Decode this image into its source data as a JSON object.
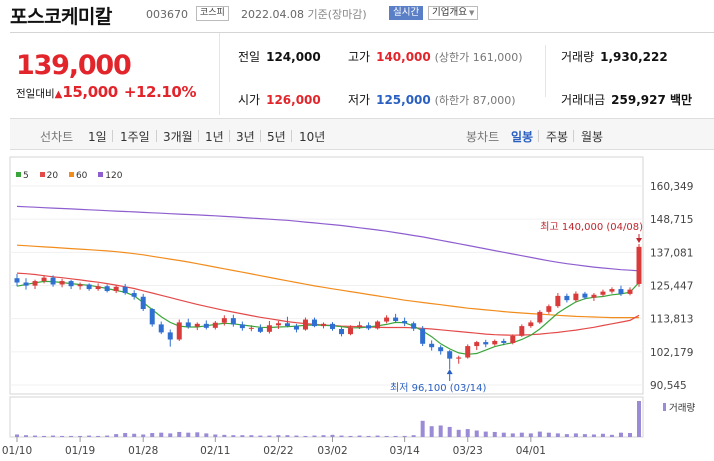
{
  "header": {
    "name": "포스코케미칼",
    "code": "003670",
    "market": "코스피",
    "date": "2022.04.08",
    "date_suffix": "기준(장마감)",
    "live_label": "실시간",
    "info_label": "기업개요"
  },
  "price": {
    "current": "139,000",
    "change_label": "전일대비",
    "change_amount": "15,000",
    "change_pct": "+12.10%",
    "up_color": "#e2242b"
  },
  "stats": {
    "prev_close": {
      "label": "전일",
      "value": "124,000"
    },
    "high": {
      "label": "고가",
      "value": "140,000",
      "sub": "(상한가 161,000)"
    },
    "volume": {
      "label": "거래량",
      "value": "1,930,222"
    },
    "open": {
      "label": "시가",
      "value": "126,000"
    },
    "low": {
      "label": "저가",
      "value": "125,000",
      "sub": "(하한가 87,000)"
    },
    "amount": {
      "label": "거래대금",
      "value": "259,927 백만"
    }
  },
  "tabs": {
    "period_label": "선차트",
    "periods": [
      "1일",
      "1주일",
      "3개월",
      "1년",
      "3년",
      "5년",
      "10년"
    ],
    "candle_label": "봉차트",
    "candles": [
      "일봉",
      "주봉",
      "월봉"
    ],
    "active_candle": "일봉"
  },
  "legend": [
    {
      "label": "5",
      "color": "#3aa63a"
    },
    {
      "label": "20",
      "color": "#e44a4a"
    },
    {
      "label": "60",
      "color": "#f28c1c"
    },
    {
      "label": "120",
      "color": "#8e5ecf"
    }
  ],
  "chart_data": {
    "type": "candlestick",
    "y_ticks": [
      "160,349",
      "148,715",
      "137,081",
      "125,447",
      "113,813",
      "102,179",
      "90,545"
    ],
    "x_labels": [
      "01/10",
      "01/19",
      "01/28",
      "02/11",
      "02/22",
      "03/02",
      "03/14",
      "03/23",
      "04/01"
    ],
    "high_annotation": "최고 140,000 (04/08)",
    "low_annotation": "최저 96,100 (03/14)",
    "volume_label": "거래량",
    "up_color": "#d93b3b",
    "down_color": "#2f6fd1",
    "volume_color": "#9b8ad6",
    "candles": [
      {
        "o": 128000,
        "h": 129500,
        "l": 125200,
        "c": 126500
      },
      {
        "o": 126500,
        "h": 128000,
        "l": 124000,
        "c": 125400
      },
      {
        "o": 125400,
        "h": 127500,
        "l": 124200,
        "c": 127000
      },
      {
        "o": 127000,
        "h": 129000,
        "l": 126200,
        "c": 128200
      },
      {
        "o": 128200,
        "h": 129000,
        "l": 125000,
        "c": 125800
      },
      {
        "o": 125800,
        "h": 127800,
        "l": 124800,
        "c": 127000
      },
      {
        "o": 127000,
        "h": 127400,
        "l": 124200,
        "c": 125200
      },
      {
        "o": 125200,
        "h": 126500,
        "l": 124000,
        "c": 125800
      },
      {
        "o": 125800,
        "h": 126200,
        "l": 123600,
        "c": 124200
      },
      {
        "o": 124200,
        "h": 126200,
        "l": 123600,
        "c": 125200
      },
      {
        "o": 125200,
        "h": 125800,
        "l": 123000,
        "c": 123500
      },
      {
        "o": 123500,
        "h": 125500,
        "l": 122800,
        "c": 125000
      },
      {
        "o": 125000,
        "h": 126000,
        "l": 122200,
        "c": 122800
      },
      {
        "o": 122800,
        "h": 123800,
        "l": 120500,
        "c": 121500
      },
      {
        "o": 121500,
        "h": 122500,
        "l": 116500,
        "c": 117200
      },
      {
        "o": 117200,
        "h": 117500,
        "l": 111000,
        "c": 111800
      },
      {
        "o": 111800,
        "h": 112800,
        "l": 108400,
        "c": 109000
      },
      {
        "o": 109000,
        "h": 110000,
        "l": 104000,
        "c": 106500
      },
      {
        "o": 106500,
        "h": 113500,
        "l": 106000,
        "c": 112500
      },
      {
        "o": 112500,
        "h": 113800,
        "l": 110300,
        "c": 111000
      },
      {
        "o": 111000,
        "h": 112500,
        "l": 109800,
        "c": 112000
      },
      {
        "o": 112000,
        "h": 113200,
        "l": 110000,
        "c": 110600
      },
      {
        "o": 110600,
        "h": 113000,
        "l": 110000,
        "c": 112400
      },
      {
        "o": 112400,
        "h": 115000,
        "l": 111400,
        "c": 114000
      },
      {
        "o": 114000,
        "h": 115200,
        "l": 111000,
        "c": 111800
      },
      {
        "o": 111800,
        "h": 112800,
        "l": 109600,
        "c": 110500
      },
      {
        "o": 110500,
        "h": 111500,
        "l": 109400,
        "c": 110600
      },
      {
        "o": 110600,
        "h": 111800,
        "l": 108800,
        "c": 109200
      },
      {
        "o": 109200,
        "h": 113000,
        "l": 108600,
        "c": 111500
      },
      {
        "o": 111500,
        "h": 113000,
        "l": 110200,
        "c": 112200
      },
      {
        "o": 112200,
        "h": 114500,
        "l": 110800,
        "c": 111200
      },
      {
        "o": 111200,
        "h": 112000,
        "l": 109000,
        "c": 110000
      },
      {
        "o": 110000,
        "h": 114200,
        "l": 109600,
        "c": 113500
      },
      {
        "o": 113500,
        "h": 114200,
        "l": 110800,
        "c": 111200
      },
      {
        "o": 111200,
        "h": 112500,
        "l": 110400,
        "c": 112000
      },
      {
        "o": 112000,
        "h": 112600,
        "l": 109600,
        "c": 110200
      },
      {
        "o": 110200,
        "h": 110800,
        "l": 107600,
        "c": 108400
      },
      {
        "o": 108400,
        "h": 111500,
        "l": 108000,
        "c": 110800
      },
      {
        "o": 110800,
        "h": 112800,
        "l": 110200,
        "c": 111500
      },
      {
        "o": 111500,
        "h": 112500,
        "l": 109800,
        "c": 110400
      },
      {
        "o": 110400,
        "h": 113200,
        "l": 110000,
        "c": 112800
      },
      {
        "o": 112800,
        "h": 115000,
        "l": 112200,
        "c": 114200
      },
      {
        "o": 114200,
        "h": 115500,
        "l": 112400,
        "c": 113000
      },
      {
        "o": 113000,
        "h": 114200,
        "l": 111200,
        "c": 112200
      },
      {
        "o": 112200,
        "h": 112800,
        "l": 109500,
        "c": 110300
      },
      {
        "o": 110300,
        "h": 111200,
        "l": 104200,
        "c": 105000
      },
      {
        "o": 105000,
        "h": 106200,
        "l": 102600,
        "c": 103800
      },
      {
        "o": 103800,
        "h": 104500,
        "l": 101200,
        "c": 102400
      },
      {
        "o": 102400,
        "h": 102800,
        "l": 96100,
        "c": 99800
      },
      {
        "o": 99800,
        "h": 100800,
        "l": 98000,
        "c": 100200
      },
      {
        "o": 100200,
        "h": 104800,
        "l": 99800,
        "c": 104200
      },
      {
        "o": 104200,
        "h": 106000,
        "l": 102800,
        "c": 105600
      },
      {
        "o": 105600,
        "h": 106400,
        "l": 103800,
        "c": 104800
      },
      {
        "o": 104800,
        "h": 106500,
        "l": 104300,
        "c": 106000
      },
      {
        "o": 106000,
        "h": 106800,
        "l": 104500,
        "c": 105300
      },
      {
        "o": 105300,
        "h": 108300,
        "l": 104800,
        "c": 107800
      },
      {
        "o": 107800,
        "h": 111800,
        "l": 107400,
        "c": 111200
      },
      {
        "o": 111200,
        "h": 113200,
        "l": 110600,
        "c": 112500
      },
      {
        "o": 112500,
        "h": 116800,
        "l": 112000,
        "c": 116200
      },
      {
        "o": 116200,
        "h": 118800,
        "l": 115500,
        "c": 118200
      },
      {
        "o": 118200,
        "h": 122800,
        "l": 117600,
        "c": 121800
      },
      {
        "o": 121800,
        "h": 122600,
        "l": 119500,
        "c": 120300
      },
      {
        "o": 120300,
        "h": 123400,
        "l": 119600,
        "c": 122600
      },
      {
        "o": 122600,
        "h": 123200,
        "l": 120600,
        "c": 121200
      },
      {
        "o": 121200,
        "h": 122800,
        "l": 120000,
        "c": 122200
      },
      {
        "o": 122200,
        "h": 124000,
        "l": 121600,
        "c": 123300
      },
      {
        "o": 123300,
        "h": 124800,
        "l": 122600,
        "c": 124200
      },
      {
        "o": 124200,
        "h": 125400,
        "l": 121800,
        "c": 122500
      },
      {
        "o": 122500,
        "h": 124800,
        "l": 122000,
        "c": 124000
      },
      {
        "o": 126000,
        "h": 140000,
        "l": 125000,
        "c": 139000
      }
    ],
    "ma5": [
      125200,
      125800,
      126400,
      126900,
      126800,
      126500,
      126100,
      125800,
      125500,
      125000,
      124400,
      123700,
      123100,
      121800,
      119500,
      117000,
      114500,
      112500,
      111200,
      110900,
      110900,
      111300,
      111800,
      112200,
      112000,
      111600,
      111200,
      110800,
      110700,
      110900,
      111000,
      111200,
      111500,
      111600,
      111500,
      111300,
      111000,
      110600,
      110600,
      110900,
      111300,
      111800,
      112500,
      112400,
      111200,
      109500,
      107500,
      105000,
      103200,
      101800,
      101300,
      101600,
      102800,
      104000,
      104800,
      105400,
      106500,
      108000,
      110200,
      113000,
      115800,
      117800,
      119700,
      120800,
      121300,
      121600,
      122200,
      122500,
      123100,
      126500
    ],
    "ma20": [
      129800,
      129600,
      129300,
      128900,
      128500,
      128200,
      127800,
      127400,
      127000,
      126600,
      126100,
      125600,
      125000,
      124400,
      123600,
      122800,
      122000,
      121200,
      120400,
      119600,
      118800,
      118100,
      117400,
      116700,
      116100,
      115500,
      114900,
      114300,
      113800,
      113300,
      112800,
      112400,
      112100,
      111800,
      111600,
      111400,
      111200,
      111100,
      111000,
      110900,
      110800,
      110700,
      110700,
      110700,
      110600,
      110400,
      110200,
      109900,
      109600,
      109300,
      109000,
      108700,
      108400,
      108200,
      108100,
      108000,
      108100,
      108200,
      108400,
      108700,
      109000,
      109400,
      109800,
      110300,
      110800,
      111400,
      112000,
      112600,
      113200,
      115000
    ],
    "ma60": [
      139600,
      139400,
      139200,
      139000,
      138800,
      138600,
      138400,
      138200,
      138000,
      137800,
      137600,
      137300,
      137000,
      136600,
      136200,
      135700,
      135200,
      134700,
      134200,
      133700,
      133100,
      132500,
      131900,
      131300,
      130700,
      130100,
      129500,
      128900,
      128300,
      127700,
      127100,
      126500,
      125900,
      125300,
      124800,
      124300,
      123800,
      123300,
      122800,
      122300,
      121800,
      121300,
      120800,
      120300,
      119900,
      119500,
      119100,
      118700,
      118300,
      117900,
      117500,
      117200,
      116900,
      116600,
      116300,
      116000,
      115800,
      115600,
      115400,
      115200,
      115000,
      114800,
      114600,
      114500,
      114400,
      114300,
      114200,
      114200,
      114200,
      114200
    ],
    "ma120": [
      153200,
      153050,
      152900,
      152750,
      152600,
      152450,
      152300,
      152150,
      152000,
      151850,
      151700,
      151550,
      151400,
      151250,
      151100,
      150950,
      150800,
      150650,
      150500,
      150350,
      150200,
      150050,
      149900,
      149700,
      149500,
      149300,
      149100,
      148900,
      148700,
      148500,
      148300,
      148000,
      147700,
      147400,
      147100,
      146800,
      146500,
      146100,
      145700,
      145300,
      144900,
      144500,
      144000,
      143500,
      143000,
      142500,
      141900,
      141300,
      140700,
      140100,
      139500,
      138900,
      138300,
      137700,
      137100,
      136500,
      135900,
      135300,
      134700,
      134100,
      133600,
      133100,
      132700,
      132300,
      131900,
      131600,
      131300,
      131000,
      130800,
      130600
    ],
    "volumes": [
      0.07,
      0.05,
      0.04,
      0.03,
      0.04,
      0.03,
      0.03,
      0.03,
      0.04,
      0.03,
      0.04,
      0.08,
      0.11,
      0.09,
      0.07,
      0.11,
      0.12,
      0.1,
      0.14,
      0.12,
      0.13,
      0.1,
      0.07,
      0.06,
      0.05,
      0.05,
      0.05,
      0.04,
      0.04,
      0.05,
      0.05,
      0.04,
      0.03,
      0.04,
      0.05,
      0.06,
      0.04,
      0.03,
      0.04,
      0.03,
      0.04,
      0.03,
      0.03,
      0.03,
      0.05,
      0.45,
      0.3,
      0.32,
      0.28,
      0.2,
      0.22,
      0.18,
      0.15,
      0.14,
      0.12,
      0.1,
      0.12,
      0.1,
      0.15,
      0.12,
      0.1,
      0.08,
      0.1,
      0.08,
      0.07,
      0.09,
      0.06,
      0.12,
      0.11,
      1.0
    ]
  }
}
